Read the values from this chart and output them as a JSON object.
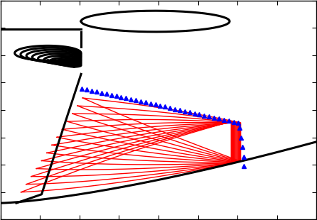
{
  "figsize": [
    4.46,
    3.1
  ],
  "dpi": 100,
  "lw_black": 2.2,
  "lw_red": 1.0,
  "blue_markersize": 4.5,
  "n_red": 13,
  "n_ticks": 9
}
